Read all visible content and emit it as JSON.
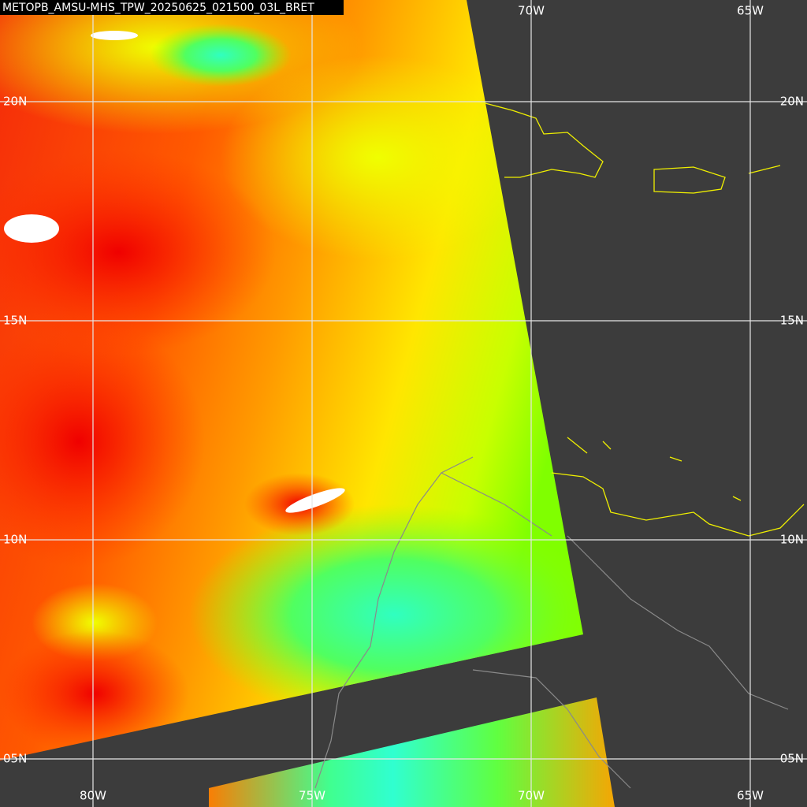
{
  "title": "METOPB_AMSU-MHS_TPW_20250625_021500_03L_BRET",
  "grid": {
    "top_lon_labels": [
      "70W",
      "65W"
    ],
    "bottom_lon_labels": [
      "80W",
      "75W",
      "70W",
      "65W"
    ],
    "left_lat_labels": [
      "20N",
      "15N",
      "10N",
      "05N"
    ],
    "right_lat_labels": [
      "20N",
      "15N",
      "10N",
      "05N"
    ]
  }
}
